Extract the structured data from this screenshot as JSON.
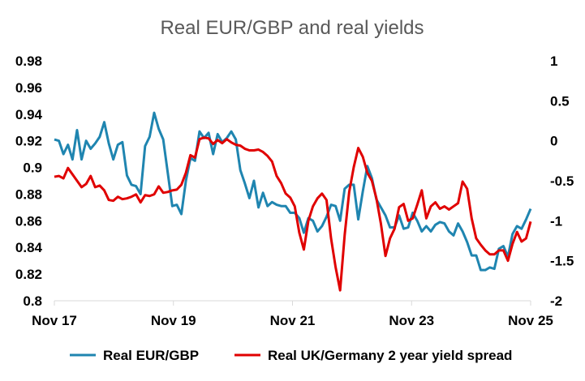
{
  "chart_data": {
    "type": "line",
    "title": "Real EUR/GBP and real yields",
    "xlabel": "",
    "ylabel": "",
    "x_tick_labels": [
      "Nov 17",
      "Nov 19",
      "Nov 21",
      "Nov 23",
      "Nov 25"
    ],
    "y_left": {
      "lim": [
        0.8,
        0.98
      ],
      "ticks": [
        "0.8",
        "0.82",
        "0.84",
        "0.86",
        "0.88",
        "0.9",
        "0.92",
        "0.94",
        "0.96",
        "0.98"
      ]
    },
    "y_right": {
      "lim": [
        -2,
        1
      ],
      "ticks": [
        "-2",
        "-1.5",
        "-1",
        "-0.5",
        "0",
        "0.5",
        "1"
      ]
    },
    "grid": false,
    "legend_position": "bottom",
    "series": [
      {
        "name": "Real EUR/GBP",
        "axis": "left",
        "color": "#1f85b0",
        "points": [
          [
            0.0,
            0.921
          ],
          [
            1.0,
            0.92
          ],
          [
            2.0,
            0.91
          ],
          [
            3.0,
            0.917
          ],
          [
            4.0,
            0.906
          ],
          [
            5.0,
            0.928
          ],
          [
            6.0,
            0.906
          ],
          [
            7.0,
            0.92
          ],
          [
            8.0,
            0.914
          ],
          [
            9.0,
            0.918
          ],
          [
            10.0,
            0.923
          ],
          [
            11.0,
            0.934
          ],
          [
            12.0,
            0.918
          ],
          [
            13.0,
            0.906
          ],
          [
            14.0,
            0.917
          ],
          [
            15.0,
            0.919
          ],
          [
            16.0,
            0.894
          ],
          [
            17.0,
            0.887
          ],
          [
            18.0,
            0.886
          ],
          [
            19.0,
            0.88
          ],
          [
            20.0,
            0.916
          ],
          [
            21.0,
            0.923
          ],
          [
            22.0,
            0.941
          ],
          [
            23.0,
            0.929
          ],
          [
            24.0,
            0.921
          ],
          [
            25.0,
            0.896
          ],
          [
            26.0,
            0.871
          ],
          [
            27.0,
            0.872
          ],
          [
            28.0,
            0.865
          ],
          [
            29.0,
            0.89
          ],
          [
            30.0,
            0.907
          ],
          [
            31.0,
            0.905
          ],
          [
            32.0,
            0.927
          ],
          [
            33.0,
            0.922
          ],
          [
            34.0,
            0.926
          ],
          [
            35.0,
            0.91
          ],
          [
            36.0,
            0.925
          ],
          [
            37.0,
            0.919
          ],
          [
            38.0,
            0.922
          ],
          [
            39.0,
            0.927
          ],
          [
            40.0,
            0.921
          ],
          [
            41.0,
            0.898
          ],
          [
            42.0,
            0.888
          ],
          [
            43.0,
            0.877
          ],
          [
            44.0,
            0.89
          ],
          [
            45.0,
            0.87
          ],
          [
            46.0,
            0.881
          ],
          [
            47.0,
            0.871
          ],
          [
            48.0,
            0.874
          ],
          [
            49.0,
            0.872
          ],
          [
            50.0,
            0.871
          ],
          [
            51.0,
            0.871
          ],
          [
            52.0,
            0.866
          ],
          [
            53.0,
            0.866
          ],
          [
            54.0,
            0.862
          ],
          [
            55.0,
            0.851
          ],
          [
            56.0,
            0.862
          ],
          [
            57.0,
            0.86
          ],
          [
            58.0,
            0.852
          ],
          [
            59.0,
            0.856
          ],
          [
            60.0,
            0.863
          ],
          [
            61.0,
            0.872
          ],
          [
            62.0,
            0.871
          ],
          [
            63.0,
            0.86
          ],
          [
            64.0,
            0.884
          ],
          [
            65.0,
            0.887
          ],
          [
            66.0,
            0.887
          ],
          [
            67.0,
            0.861
          ],
          [
            68.0,
            0.882
          ],
          [
            69.0,
            0.901
          ],
          [
            70.0,
            0.892
          ],
          [
            71.0,
            0.876
          ],
          [
            72.0,
            0.87
          ],
          [
            73.0,
            0.864
          ],
          [
            74.0,
            0.855
          ],
          [
            75.0,
            0.855
          ],
          [
            76.0,
            0.864
          ],
          [
            77.0,
            0.854
          ],
          [
            78.0,
            0.855
          ],
          [
            79.0,
            0.866
          ],
          [
            80.0,
            0.86
          ],
          [
            81.0,
            0.852
          ],
          [
            82.0,
            0.856
          ],
          [
            83.0,
            0.852
          ],
          [
            84.0,
            0.857
          ],
          [
            85.0,
            0.859
          ],
          [
            86.0,
            0.858
          ],
          [
            87.0,
            0.852
          ],
          [
            88.0,
            0.849
          ],
          [
            89.0,
            0.858
          ],
          [
            90.0,
            0.852
          ],
          [
            91.0,
            0.844
          ],
          [
            92.0,
            0.834
          ],
          [
            93.0,
            0.834
          ],
          [
            94.0,
            0.823
          ],
          [
            95.0,
            0.823
          ],
          [
            96.0,
            0.825
          ],
          [
            97.0,
            0.824
          ],
          [
            98.0,
            0.839
          ],
          [
            99.0,
            0.841
          ],
          [
            100.0,
            0.833
          ],
          [
            101.0,
            0.85
          ],
          [
            102.0,
            0.856
          ],
          [
            103.0,
            0.854
          ],
          [
            104.0,
            0.861
          ],
          [
            105.0,
            0.869
          ]
        ]
      },
      {
        "name": "Real UK/Germany 2 year yield spread",
        "axis": "right",
        "color": "#e00000",
        "points": [
          [
            0.0,
            -0.45
          ],
          [
            1.0,
            -0.44
          ],
          [
            2.0,
            -0.47
          ],
          [
            3.0,
            -0.34
          ],
          [
            4.0,
            -0.42
          ],
          [
            5.0,
            -0.5
          ],
          [
            6.0,
            -0.58
          ],
          [
            7.0,
            -0.54
          ],
          [
            8.0,
            -0.44
          ],
          [
            9.0,
            -0.58
          ],
          [
            10.0,
            -0.56
          ],
          [
            11.0,
            -0.62
          ],
          [
            12.0,
            -0.74
          ],
          [
            13.0,
            -0.75
          ],
          [
            14.0,
            -0.7
          ],
          [
            15.0,
            -0.73
          ],
          [
            16.0,
            -0.72
          ],
          [
            17.0,
            -0.7
          ],
          [
            18.0,
            -0.67
          ],
          [
            19.0,
            -0.77
          ],
          [
            20.0,
            -0.68
          ],
          [
            21.0,
            -0.69
          ],
          [
            22.0,
            -0.67
          ],
          [
            23.0,
            -0.57
          ],
          [
            24.0,
            -0.65
          ],
          [
            25.0,
            -0.64
          ],
          [
            26.0,
            -0.62
          ],
          [
            27.0,
            -0.61
          ],
          [
            28.0,
            -0.55
          ],
          [
            29.0,
            -0.4
          ],
          [
            30.0,
            -0.18
          ],
          [
            31.0,
            -0.21
          ],
          [
            32.0,
            0.02
          ],
          [
            33.0,
            0.04
          ],
          [
            34.0,
            0.03
          ],
          [
            35.0,
            -0.04
          ],
          [
            36.0,
            0.01
          ],
          [
            37.0,
            -0.03
          ],
          [
            38.0,
            0.02
          ],
          [
            39.0,
            -0.02
          ],
          [
            40.0,
            -0.05
          ],
          [
            41.0,
            -0.06
          ],
          [
            42.0,
            -0.1
          ],
          [
            43.0,
            -0.12
          ],
          [
            44.0,
            -0.12
          ],
          [
            45.0,
            -0.11
          ],
          [
            46.0,
            -0.14
          ],
          [
            47.0,
            -0.19
          ],
          [
            48.0,
            -0.26
          ],
          [
            49.0,
            -0.44
          ],
          [
            50.0,
            -0.53
          ],
          [
            51.0,
            -0.66
          ],
          [
            52.0,
            -0.71
          ],
          [
            53.0,
            -0.82
          ],
          [
            54.0,
            -1.15
          ],
          [
            55.0,
            -1.36
          ],
          [
            56.0,
            -1.0
          ],
          [
            57.0,
            -0.82
          ],
          [
            58.0,
            -0.72
          ],
          [
            59.0,
            -0.66
          ],
          [
            60.0,
            -0.74
          ],
          [
            61.0,
            -1.22
          ],
          [
            62.0,
            -1.58
          ],
          [
            63.0,
            -1.87
          ],
          [
            64.0,
            -1.18
          ],
          [
            65.0,
            -0.64
          ],
          [
            66.0,
            -0.33
          ],
          [
            67.0,
            -0.09
          ],
          [
            68.0,
            -0.2
          ],
          [
            69.0,
            -0.4
          ],
          [
            70.0,
            -0.5
          ],
          [
            71.0,
            -0.72
          ],
          [
            72.0,
            -1.04
          ],
          [
            73.0,
            -1.44
          ],
          [
            74.0,
            -1.22
          ],
          [
            75.0,
            -1.1
          ],
          [
            76.0,
            -0.83
          ],
          [
            77.0,
            -0.79
          ],
          [
            78.0,
            -1.0
          ],
          [
            79.0,
            -0.97
          ],
          [
            80.0,
            -0.8
          ],
          [
            81.0,
            -0.62
          ],
          [
            82.0,
            -0.97
          ],
          [
            83.0,
            -0.82
          ],
          [
            84.0,
            -0.77
          ],
          [
            85.0,
            -0.85
          ],
          [
            86.0,
            -0.82
          ],
          [
            87.0,
            -0.86
          ],
          [
            88.0,
            -0.82
          ],
          [
            89.0,
            -0.78
          ],
          [
            90.0,
            -0.51
          ],
          [
            91.0,
            -0.6
          ],
          [
            92.0,
            -0.97
          ],
          [
            93.0,
            -1.22
          ],
          [
            94.0,
            -1.3
          ],
          [
            95.0,
            -1.37
          ],
          [
            96.0,
            -1.42
          ],
          [
            97.0,
            -1.42
          ],
          [
            98.0,
            -1.37
          ],
          [
            99.0,
            -1.37
          ],
          [
            100.0,
            -1.5
          ],
          [
            101.0,
            -1.29
          ],
          [
            102.0,
            -1.14
          ],
          [
            103.0,
            -1.26
          ],
          [
            104.0,
            -1.22
          ],
          [
            105.0,
            -1.01
          ]
        ]
      }
    ]
  }
}
